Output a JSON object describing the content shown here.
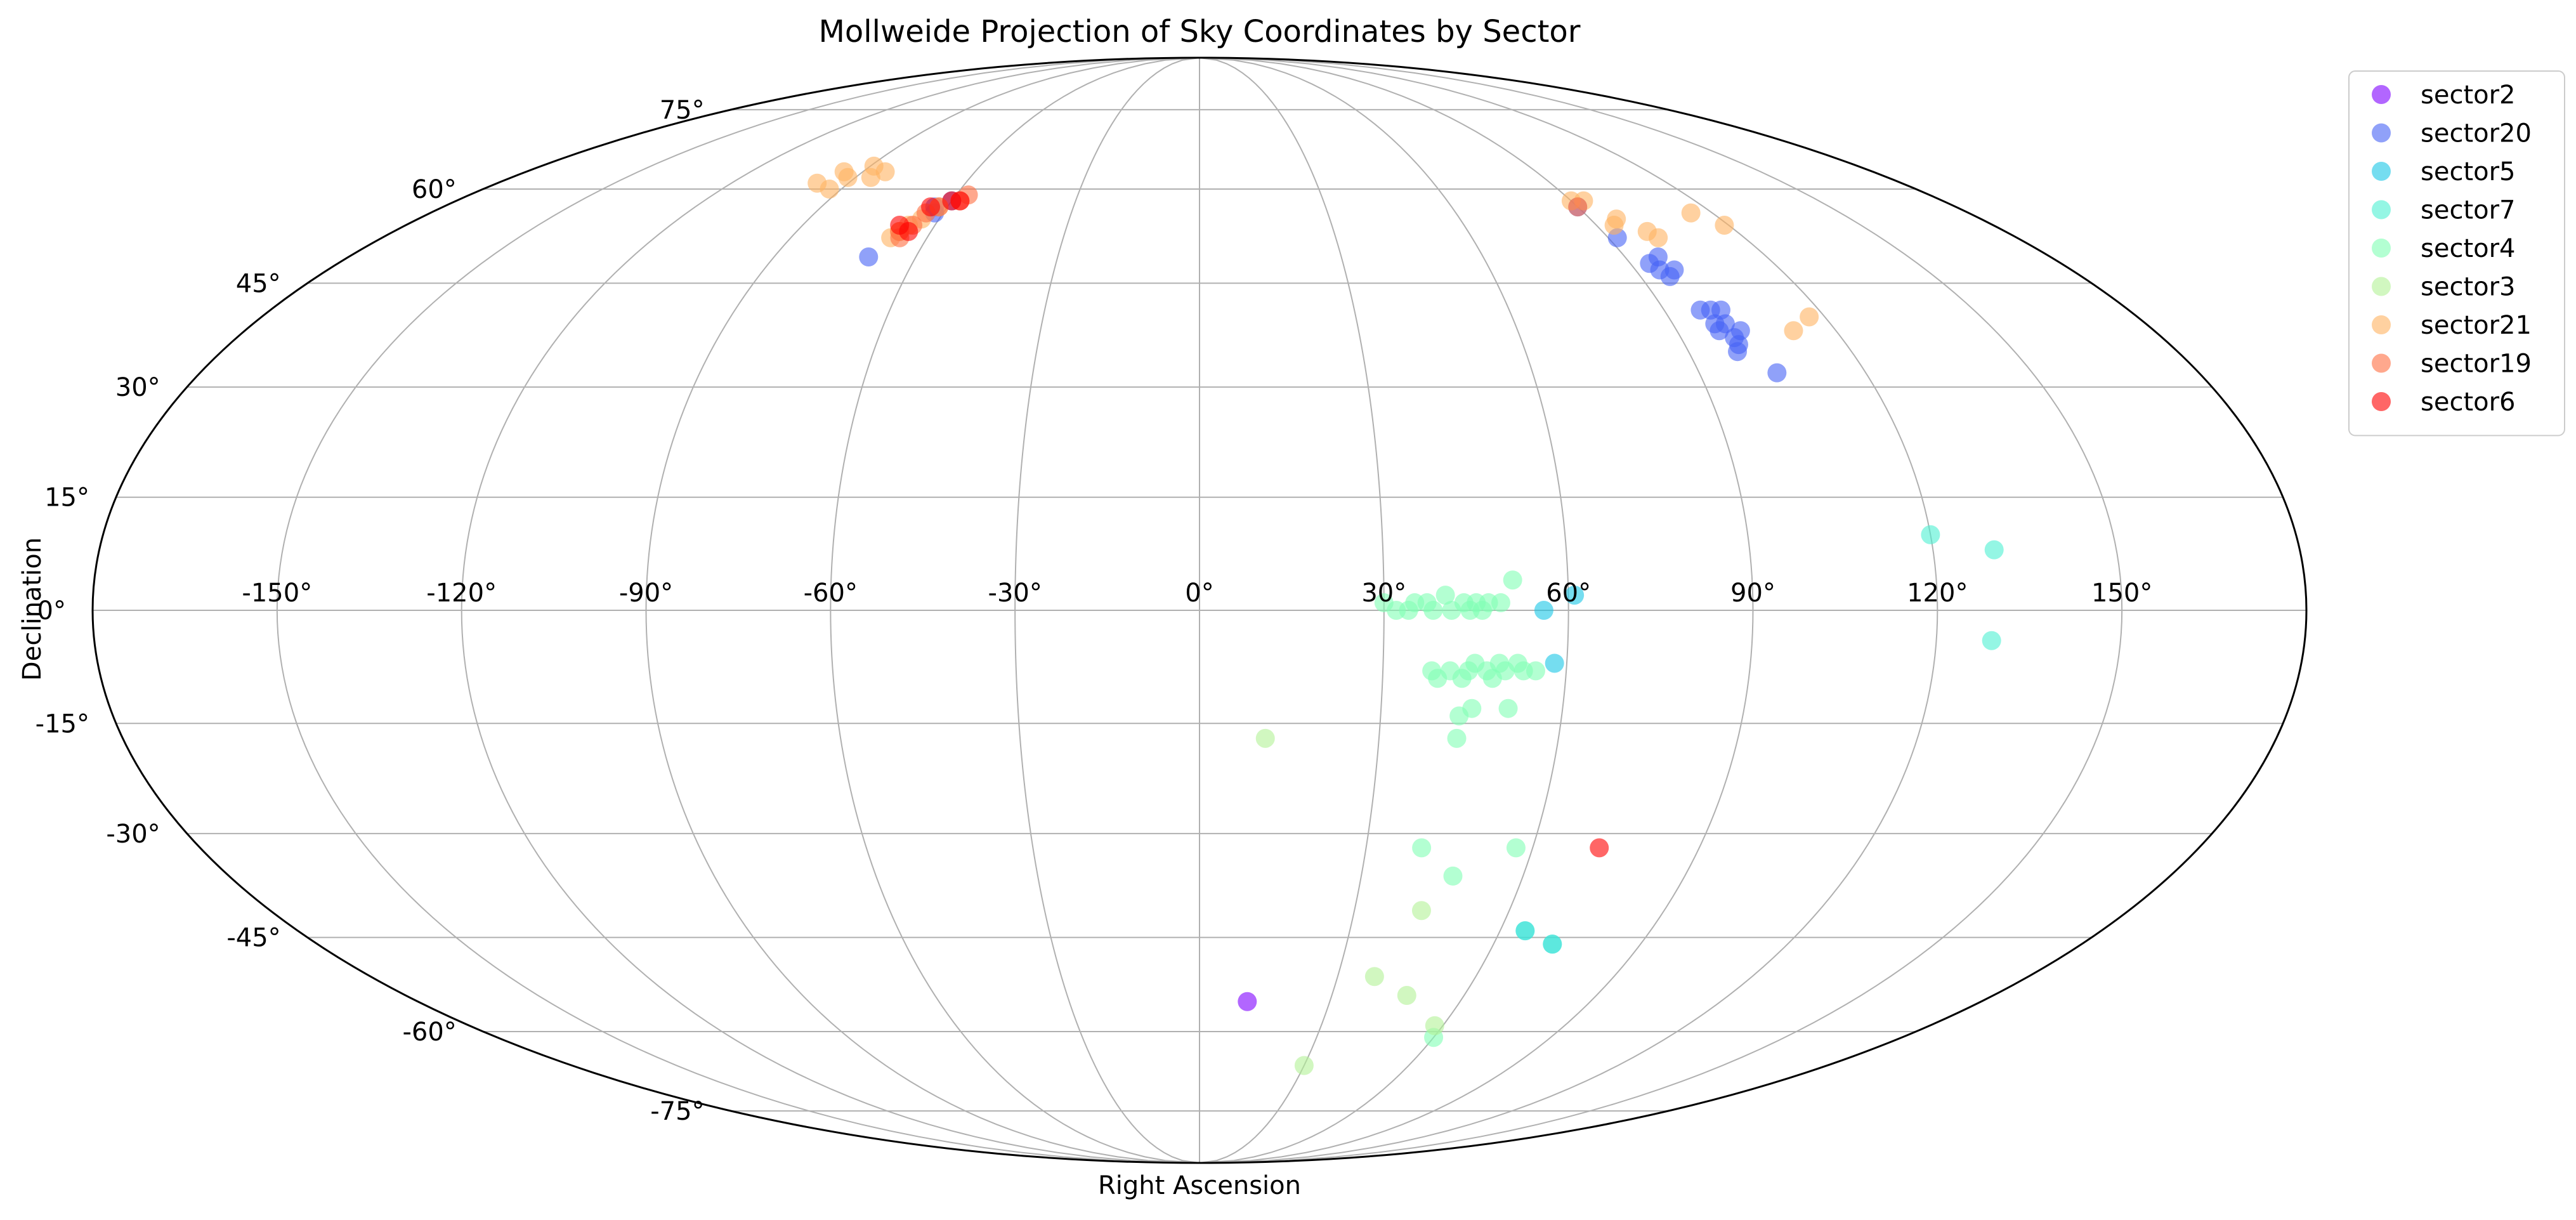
{
  "chart_data": {
    "type": "scatter",
    "projection": "mollweide",
    "title": "Mollweide Projection of Sky Coordinates by Sector",
    "xlabel": "Right Ascension",
    "ylabel": "Declination",
    "xlim": [
      -180,
      180
    ],
    "ylim": [
      -90,
      90
    ],
    "grid": true,
    "legend_position": "outside-right-top",
    "x_ticks": [
      -150,
      -120,
      -90,
      -60,
      -30,
      0,
      30,
      60,
      90,
      120,
      150
    ],
    "x_tick_labels": [
      "-150°",
      "-120°",
      "-90°",
      "-60°",
      "-30°",
      "0°",
      "30°",
      "60°",
      "90°",
      "120°",
      "150°"
    ],
    "y_ticks": [
      -75,
      -60,
      -45,
      -30,
      -15,
      0,
      15,
      30,
      45,
      60,
      75
    ],
    "y_tick_labels": [
      "-75°",
      "-60°",
      "-45°",
      "-30°",
      "-15°",
      "0°",
      "15°",
      "30°",
      "45°",
      "60°",
      "75°"
    ],
    "series": [
      {
        "name": "sector2",
        "color": "#7f00ff",
        "points": [
          [
            11,
            -55
          ]
        ]
      },
      {
        "name": "sector20",
        "color": "#4662f5",
        "points": [
          [
            -70,
            49
          ],
          [
            -63,
            57
          ],
          [
            -62,
            56
          ],
          [
            -60,
            58
          ],
          [
            90,
            57
          ],
          [
            92,
            52
          ],
          [
            94,
            48
          ],
          [
            96,
            46
          ],
          [
            98,
            47
          ],
          [
            97,
            49
          ],
          [
            95,
            47
          ],
          [
            97,
            41
          ],
          [
            98,
            39
          ],
          [
            100,
            39
          ],
          [
            99,
            41
          ],
          [
            101,
            41
          ],
          [
            98,
            38
          ],
          [
            100,
            36
          ],
          [
            99,
            35
          ],
          [
            102,
            38
          ],
          [
            104,
            32
          ],
          [
            100,
            37
          ]
        ]
      },
      {
        "name": "sector5",
        "color": "#19c6e6",
        "points": [
          [
            56,
            0
          ],
          [
            61,
            2
          ],
          [
            58,
            -7
          ],
          [
            65,
            -44
          ],
          [
            72,
            -46
          ]
        ]
      },
      {
        "name": "sector7",
        "color": "#4df0d2",
        "points": [
          [
            120,
            10
          ],
          [
            130,
            8
          ],
          [
            129,
            -4
          ],
          [
            65,
            -44
          ],
          [
            72,
            -46
          ]
        ]
      },
      {
        "name": "sector4",
        "color": "#80ffb4",
        "points": [
          [
            30,
            1
          ],
          [
            32,
            0
          ],
          [
            34,
            0
          ],
          [
            35,
            1
          ],
          [
            37,
            1
          ],
          [
            38,
            0
          ],
          [
            40,
            2
          ],
          [
            41,
            0
          ],
          [
            43,
            1
          ],
          [
            44,
            0
          ],
          [
            45,
            1
          ],
          [
            46,
            0
          ],
          [
            47,
            1
          ],
          [
            49,
            1
          ],
          [
            51,
            4
          ],
          [
            38,
            -8
          ],
          [
            39,
            -9
          ],
          [
            41,
            -8
          ],
          [
            43,
            -9
          ],
          [
            44,
            -8
          ],
          [
            45,
            -7
          ],
          [
            47,
            -8
          ],
          [
            48,
            -9
          ],
          [
            49,
            -7
          ],
          [
            50,
            -8
          ],
          [
            52,
            -7
          ],
          [
            53,
            -8
          ],
          [
            55,
            -8
          ],
          [
            43,
            -14
          ],
          [
            45,
            -13
          ],
          [
            51,
            -13
          ],
          [
            43,
            -17
          ],
          [
            40,
            -32
          ],
          [
            47,
            -36
          ],
          [
            57,
            -32
          ],
          [
            60,
            -61
          ]
        ]
      },
      {
        "name": "sector3",
        "color": "#b3f296",
        "points": [
          [
            11,
            -17
          ],
          [
            43,
            -41
          ],
          [
            38,
            -51
          ],
          [
            47,
            -54
          ],
          [
            58,
            -59
          ],
          [
            30,
            -66
          ]
        ]
      },
      {
        "name": "sector21",
        "color": "#ffb360",
        "points": [
          [
            -98,
            61
          ],
          [
            -95,
            63
          ],
          [
            -92,
            62
          ],
          [
            -93,
            60
          ],
          [
            -89,
            64
          ],
          [
            -86,
            62
          ],
          [
            -84,
            63
          ],
          [
            -68,
            52
          ],
          [
            -67,
            53
          ],
          [
            -66,
            54
          ],
          [
            -64,
            55
          ],
          [
            -62,
            57
          ],
          [
            90,
            58
          ],
          [
            93,
            58
          ],
          [
            96,
            55
          ],
          [
            94,
            54
          ],
          [
            100,
            53
          ],
          [
            101,
            52
          ],
          [
            115,
            56
          ],
          [
            119,
            54
          ],
          [
            112,
            38
          ],
          [
            117,
            40
          ]
        ]
      },
      {
        "name": "sector19",
        "color": "#ff6e41",
        "points": [
          [
            -67,
            53
          ],
          [
            -66,
            52
          ],
          [
            -65,
            54
          ],
          [
            -64,
            56
          ],
          [
            -62,
            57
          ],
          [
            -58,
            58
          ],
          [
            -57,
            59
          ],
          [
            90,
            57
          ]
        ]
      },
      {
        "name": "sector6",
        "color": "#ff0000",
        "points": [
          [
            -68,
            54
          ],
          [
            -65,
            53
          ],
          [
            -64,
            57
          ],
          [
            -60,
            58
          ],
          [
            -58,
            58
          ],
          [
            72,
            -32
          ]
        ]
      }
    ]
  }
}
